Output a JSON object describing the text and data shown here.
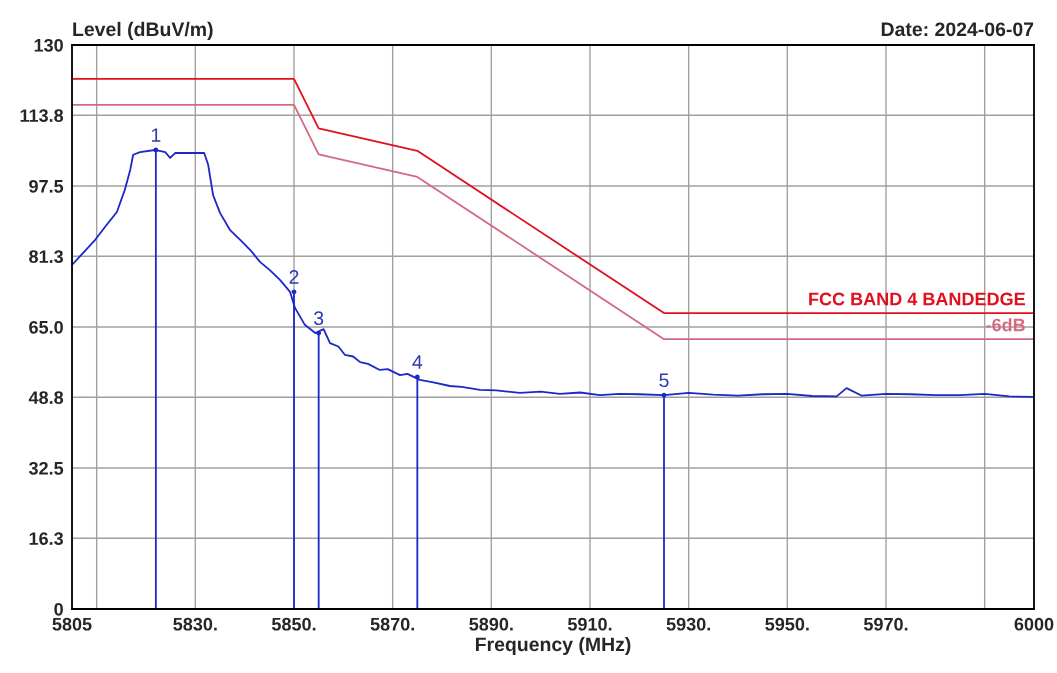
{
  "chart_data": {
    "type": "line",
    "xlabel": "Frequency (MHz)",
    "ylabel": "Level (dBuV/m)",
    "xlim": [
      5805,
      6000
    ],
    "ylim": [
      0,
      130
    ],
    "xticks": [
      {
        "value": 5805,
        "label": "5805"
      },
      {
        "value": 5810,
        "label": null
      },
      {
        "value": 5830,
        "label": "5830."
      },
      {
        "value": 5850,
        "label": "5850."
      },
      {
        "value": 5870,
        "label": "5870."
      },
      {
        "value": 5890,
        "label": "5890."
      },
      {
        "value": 5910,
        "label": "5910."
      },
      {
        "value": 5930,
        "label": "5930."
      },
      {
        "value": 5950,
        "label": "5950."
      },
      {
        "value": 5970,
        "label": "5970."
      },
      {
        "value": 5990,
        "label": null
      },
      {
        "value": 6000,
        "label": "6000"
      }
    ],
    "yticks": [
      0,
      16.3,
      32.5,
      48.8,
      {
        "value": 65,
        "label": "65.0"
      },
      81.3,
      97.5,
      113.8,
      130
    ],
    "grid": true,
    "legend": false,
    "series": [
      {
        "color": "#1c28c8",
        "x": [
          5805,
          5809.7,
          5812,
          5814.1,
          5815.7,
          5816.8,
          5817.4,
          5818.8,
          5821.8,
          5823.9,
          5824.9,
          5825.9,
          5828.9,
          5831.8,
          5832.6,
          5833.6,
          5835,
          5837,
          5839.1,
          5841.1,
          5843.1,
          5845.1,
          5847.2,
          5849.2,
          5850.2,
          5852.2,
          5854.3,
          5856,
          5857.3,
          5859,
          5860.3,
          5862,
          5863.4,
          5865,
          5867.4,
          5869,
          5871.5,
          5873,
          5875.5,
          5878,
          5881.6,
          5884,
          5887.7,
          5891,
          5895.8,
          5900,
          5903.9,
          5908,
          5912,
          5916,
          5920,
          5925,
          5930,
          5935,
          5940,
          5945,
          5950,
          5955,
          5960,
          5962,
          5965,
          5970,
          5975,
          5980,
          5985,
          5990,
          5995,
          6000
        ],
        "values": [
          79.3,
          85.1,
          88.5,
          91.5,
          96.6,
          101.2,
          104.7,
          105.3,
          105.8,
          105.3,
          104,
          105.1,
          105.1,
          105.1,
          102.4,
          95.4,
          91.3,
          87.4,
          85.1,
          82.8,
          80,
          78.1,
          75.8,
          73.1,
          69.4,
          65.5,
          63.6,
          64.5,
          61.3,
          60.5,
          58.6,
          58.2,
          56.9,
          56.5,
          55.1,
          55.3,
          53.9,
          54.2,
          52.8,
          52.3,
          51.4,
          51.2,
          50.5,
          50.4,
          49.8,
          50.1,
          49.6,
          49.9,
          49.3,
          49.6,
          49.5,
          49.3,
          49.8,
          49.4,
          49.2,
          49.5,
          49.6,
          49.1,
          49,
          50.9,
          49.2,
          49.6,
          49.5,
          49.3,
          49.3,
          49.6,
          49,
          48.9
        ]
      },
      {
        "name": "FCC BAND 4 BANDEDGE",
        "color": "#e0101c",
        "x": [
          5805,
          5850,
          5855,
          5875,
          5925,
          6000
        ],
        "values": [
          122.2,
          122.2,
          110.8,
          105.6,
          68.2,
          68.2
        ]
      },
      {
        "name": "-6dB",
        "color": "#d46a80",
        "x": [
          5805,
          5850,
          5855,
          5875,
          5925,
          6000
        ],
        "values": [
          116.2,
          116.2,
          104.8,
          99.6,
          62.2,
          62.2
        ]
      },
      {
        "type": "lollipop",
        "color": "#1c28c8",
        "x": [
          5822,
          5850,
          5855,
          5875,
          5925
        ],
        "values": [
          105.8,
          73.1,
          63.6,
          53.5,
          49.3
        ]
      }
    ],
    "annotations": [
      "Date: 2024-06-07",
      {
        "text": "1",
        "x": 5822,
        "y": 105.8
      },
      {
        "text": "2",
        "x": 5850,
        "y": 73.1
      },
      {
        "text": "3",
        "x": 5855,
        "y": 63.6
      },
      {
        "text": "4",
        "x": 5875,
        "y": 53.5
      },
      {
        "text": "5",
        "x": 5925,
        "y": 49.3
      }
    ]
  }
}
